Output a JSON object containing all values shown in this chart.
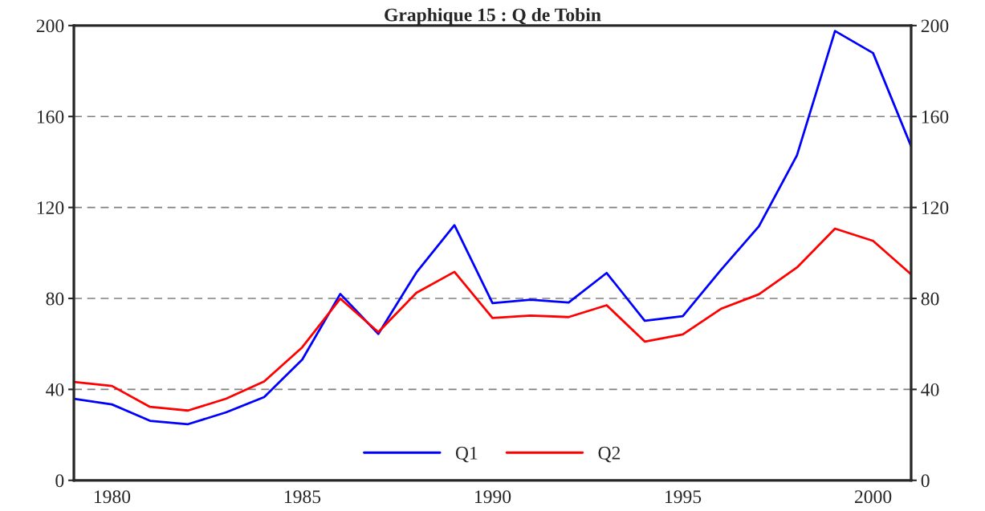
{
  "chart_data": {
    "type": "line",
    "title": "Graphique 15 : Q de Tobin",
    "x": [
      1979,
      1980,
      1981,
      1982,
      1983,
      1984,
      1985,
      1986,
      1987,
      1988,
      1989,
      1990,
      1991,
      1992,
      1993,
      1994,
      1995,
      1996,
      1997,
      1998,
      1999,
      2000,
      2001
    ],
    "series": [
      {
        "name": "Q1",
        "color": "#0000ff",
        "values": [
          35.9,
          33.4,
          26.2,
          24.7,
          29.9,
          36.6,
          53.1,
          82.0,
          64.4,
          91.4,
          112.2,
          77.9,
          79.4,
          78.2,
          91.2,
          70.2,
          72.2,
          92.5,
          111.7,
          142.9,
          197.6,
          187.9,
          146.9
        ]
      },
      {
        "name": "Q2",
        "color": "#ff0000",
        "values": [
          43.3,
          41.5,
          32.3,
          30.7,
          35.9,
          43.5,
          58.5,
          79.9,
          65.2,
          82.5,
          91.7,
          71.4,
          72.5,
          71.8,
          77.0,
          61.0,
          64.2,
          75.4,
          81.8,
          93.6,
          110.7,
          105.3,
          90.6
        ]
      }
    ],
    "xlim": [
      1979,
      2001
    ],
    "xticks": [
      1980,
      1985,
      1990,
      1995,
      2000
    ],
    "ylim": [
      0,
      200
    ],
    "yticks": [
      0,
      40,
      80,
      120,
      160,
      200
    ],
    "y2lim": [
      0,
      200
    ],
    "y2ticks": [
      0,
      40,
      80,
      120,
      160,
      200
    ],
    "grid": "y",
    "legend": "bottom",
    "marker": "none",
    "line_style": "solid"
  }
}
